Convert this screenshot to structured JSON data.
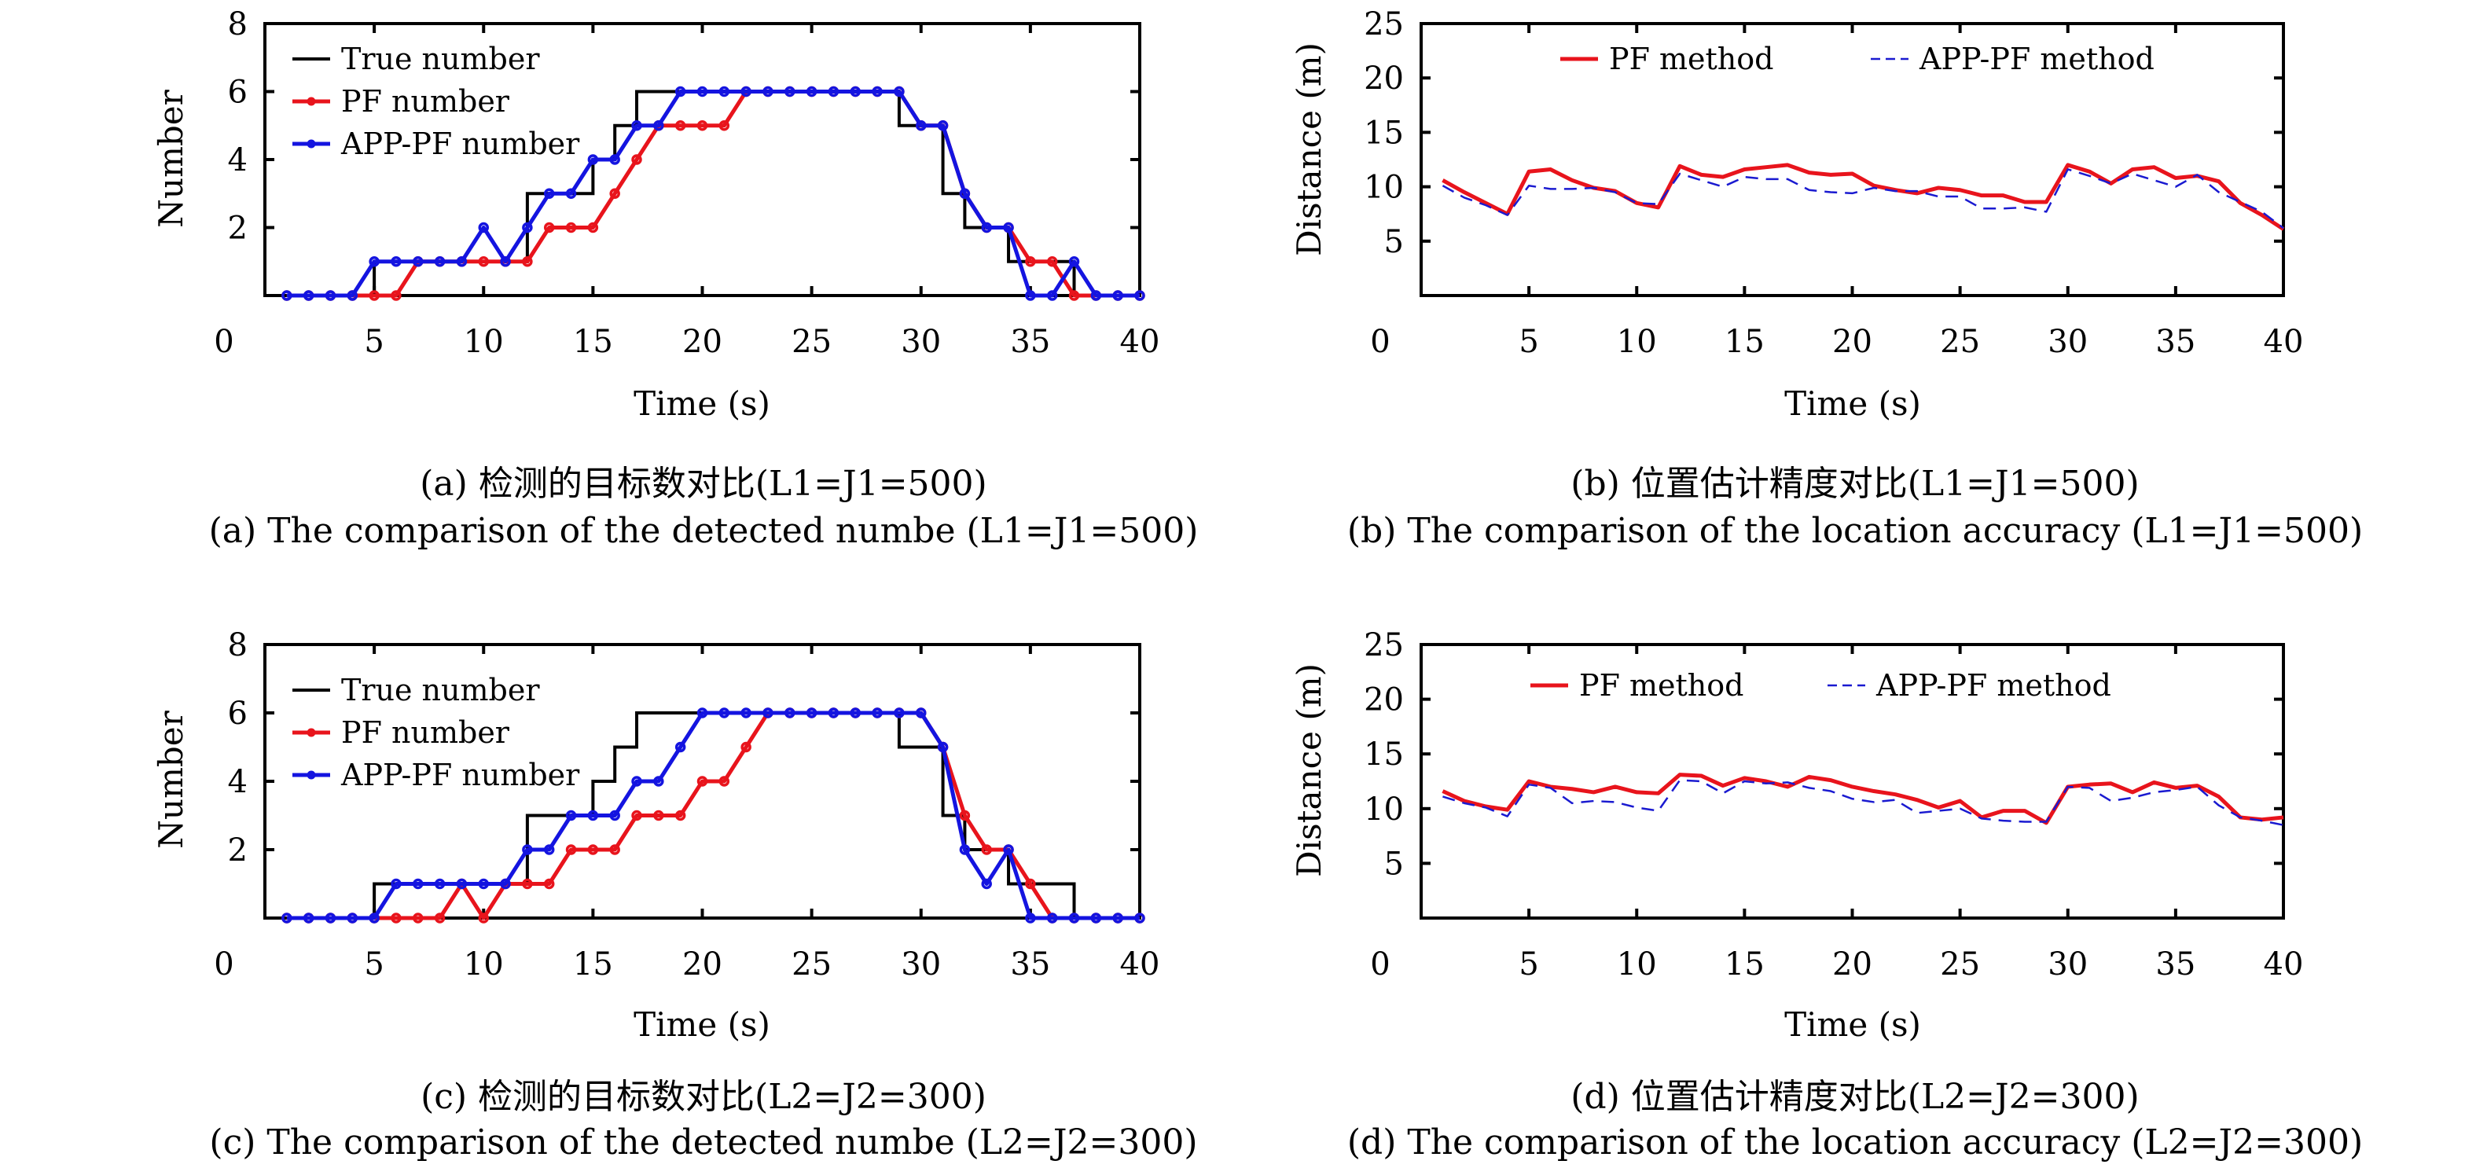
{
  "figure": {
    "panels": [
      "a",
      "b",
      "c",
      "d"
    ]
  },
  "chart_data": [
    {
      "id": "a",
      "type": "line",
      "xlabel": "Time (s)",
      "ylabel": "Number",
      "xlim": [
        0,
        40
      ],
      "ylim": [
        0,
        8
      ],
      "xticks": [
        0,
        5,
        10,
        15,
        20,
        25,
        30,
        35,
        40
      ],
      "yticks": [
        2,
        4,
        6,
        8
      ],
      "ytick_zero_label": "0",
      "legend_position": "top-left",
      "caption_cn": "(a) 检测的目标数对比(L1=J1=500)",
      "caption_en": "(a) The comparison of the detected numbe (L1=J1=500)",
      "x": [
        1,
        2,
        3,
        4,
        5,
        6,
        7,
        8,
        9,
        10,
        11,
        12,
        13,
        14,
        15,
        16,
        17,
        18,
        19,
        20,
        21,
        22,
        23,
        24,
        25,
        26,
        27,
        28,
        29,
        30,
        31,
        32,
        33,
        34,
        35,
        36,
        37,
        38,
        39,
        40
      ],
      "series": [
        {
          "name": "True number",
          "color": "#000000",
          "style": "step",
          "steps": [
            [
              1,
              0
            ],
            [
              5,
              1
            ],
            [
              12,
              3
            ],
            [
              15,
              4
            ],
            [
              16,
              5
            ],
            [
              17,
              6
            ],
            [
              29,
              5
            ],
            [
              31,
              3
            ],
            [
              32,
              2
            ],
            [
              34,
              1
            ],
            [
              37,
              0
            ],
            [
              40,
              0
            ]
          ]
        },
        {
          "name": "PF number",
          "color": "#e8141c",
          "style": "line-marker",
          "values": [
            0,
            0,
            0,
            0,
            0,
            0,
            1,
            1,
            1,
            1,
            1,
            1,
            2,
            2,
            2,
            3,
            4,
            5,
            5,
            5,
            5,
            6,
            6,
            6,
            6,
            6,
            6,
            6,
            6,
            5,
            5,
            3,
            2,
            2,
            1,
            1,
            0,
            0,
            0,
            0
          ]
        },
        {
          "name": "APP-PF number",
          "color": "#1414e0",
          "style": "line-marker",
          "values": [
            0,
            0,
            0,
            0,
            1,
            1,
            1,
            1,
            1,
            2,
            1,
            2,
            3,
            3,
            4,
            4,
            5,
            5,
            6,
            6,
            6,
            6,
            6,
            6,
            6,
            6,
            6,
            6,
            6,
            5,
            5,
            3,
            2,
            2,
            0,
            0,
            1,
            0,
            0,
            0
          ]
        }
      ]
    },
    {
      "id": "b",
      "type": "line",
      "xlabel": "Time (s)",
      "ylabel": "Distance (m)",
      "xlim": [
        0,
        40
      ],
      "ylim": [
        0,
        25
      ],
      "xticks": [
        0,
        5,
        10,
        15,
        20,
        25,
        30,
        35,
        40
      ],
      "yticks": [
        5,
        10,
        15,
        20,
        25
      ],
      "ytick_zero_label": "0",
      "legend_position": "top-center",
      "caption_cn": "(b) 位置估计精度对比(L1=J1=500)",
      "caption_en": "(b) The comparison of the location accuracy (L1=J1=500)",
      "x": [
        1,
        2,
        3,
        4,
        5,
        6,
        7,
        8,
        9,
        10,
        11,
        12,
        13,
        14,
        15,
        16,
        17,
        18,
        19,
        20,
        21,
        22,
        23,
        24,
        25,
        26,
        27,
        28,
        29,
        30,
        31,
        32,
        33,
        34,
        35,
        36,
        37,
        38,
        39,
        40
      ],
      "series": [
        {
          "name": "PF method",
          "color": "#e8141c",
          "style": "solid",
          "values": [
            10.6,
            9.5,
            8.5,
            7.5,
            11.4,
            11.6,
            10.6,
            9.9,
            9.6,
            8.5,
            8.1,
            11.9,
            11.1,
            10.9,
            11.6,
            11.8,
            12.0,
            11.3,
            11.1,
            11.2,
            10.1,
            9.7,
            9.4,
            9.9,
            9.7,
            9.2,
            9.2,
            8.6,
            8.6,
            12.0,
            11.4,
            10.3,
            11.6,
            11.8,
            10.8,
            11.0,
            10.5,
            8.5,
            7.4,
            6.1
          ]
        },
        {
          "name": "APP-PF method",
          "color": "#1a1ad0",
          "style": "dashed",
          "values": [
            10.1,
            9.0,
            8.3,
            7.4,
            10.1,
            9.8,
            9.8,
            9.9,
            9.5,
            8.5,
            8.4,
            11.2,
            10.6,
            10.0,
            10.9,
            10.7,
            10.7,
            9.7,
            9.5,
            9.4,
            9.9,
            9.6,
            9.6,
            9.1,
            9.1,
            8.0,
            8.0,
            8.1,
            7.7,
            11.6,
            11.0,
            10.3,
            11.2,
            10.6,
            10.0,
            11.1,
            9.5,
            8.6,
            7.7,
            6.2
          ]
        }
      ]
    },
    {
      "id": "c",
      "type": "line",
      "xlabel": "Time (s)",
      "ylabel": "Number",
      "xlim": [
        0,
        40
      ],
      "ylim": [
        0,
        8
      ],
      "xticks": [
        0,
        5,
        10,
        15,
        20,
        25,
        30,
        35,
        40
      ],
      "yticks": [
        2,
        4,
        6,
        8
      ],
      "ytick_zero_label": "0",
      "legend_position": "top-left",
      "caption_cn": "(c) 检测的目标数对比(L2=J2=300)",
      "caption_en": "(c) The comparison of the detected numbe (L2=J2=300)",
      "x": [
        1,
        2,
        3,
        4,
        5,
        6,
        7,
        8,
        9,
        10,
        11,
        12,
        13,
        14,
        15,
        16,
        17,
        18,
        19,
        20,
        21,
        22,
        23,
        24,
        25,
        26,
        27,
        28,
        29,
        30,
        31,
        32,
        33,
        34,
        35,
        36,
        37,
        38,
        39,
        40
      ],
      "series": [
        {
          "name": "True number",
          "color": "#000000",
          "style": "step",
          "steps": [
            [
              1,
              0
            ],
            [
              5,
              1
            ],
            [
              12,
              3
            ],
            [
              15,
              4
            ],
            [
              16,
              5
            ],
            [
              17,
              6
            ],
            [
              29,
              5
            ],
            [
              31,
              3
            ],
            [
              32,
              2
            ],
            [
              34,
              1
            ],
            [
              37,
              0
            ],
            [
              40,
              0
            ]
          ]
        },
        {
          "name": "PF number",
          "color": "#e8141c",
          "style": "line-marker",
          "values": [
            0,
            0,
            0,
            0,
            0,
            0,
            0,
            0,
            1,
            0,
            1,
            1,
            1,
            2,
            2,
            2,
            3,
            3,
            3,
            4,
            4,
            5,
            6,
            6,
            6,
            6,
            6,
            6,
            6,
            6,
            5,
            3,
            2,
            2,
            1,
            0,
            0,
            0,
            0,
            0
          ]
        },
        {
          "name": "APP-PF number",
          "color": "#1414e0",
          "style": "line-marker",
          "values": [
            0,
            0,
            0,
            0,
            0,
            1,
            1,
            1,
            1,
            1,
            1,
            2,
            2,
            3,
            3,
            3,
            4,
            4,
            5,
            6,
            6,
            6,
            6,
            6,
            6,
            6,
            6,
            6,
            6,
            6,
            5,
            2,
            1,
            2,
            0,
            0,
            0,
            0,
            0,
            0
          ]
        }
      ]
    },
    {
      "id": "d",
      "type": "line",
      "xlabel": "Time (s)",
      "ylabel": "Distance (m)",
      "xlim": [
        0,
        40
      ],
      "ylim": [
        0,
        25
      ],
      "xticks": [
        0,
        5,
        10,
        15,
        20,
        25,
        30,
        35,
        40
      ],
      "yticks": [
        5,
        10,
        15,
        20,
        25
      ],
      "ytick_zero_label": "0",
      "legend_position": "top-center",
      "caption_cn": "(d) 位置估计精度对比(L2=J2=300)",
      "caption_en": "(d) The comparison of the location accuracy (L2=J2=300)",
      "x": [
        1,
        2,
        3,
        4,
        5,
        6,
        7,
        8,
        9,
        10,
        11,
        12,
        13,
        14,
        15,
        16,
        17,
        18,
        19,
        20,
        21,
        22,
        23,
        24,
        25,
        26,
        27,
        28,
        29,
        30,
        31,
        32,
        33,
        34,
        35,
        36,
        37,
        38,
        39,
        40
      ],
      "series": [
        {
          "name": "PF method",
          "color": "#e8141c",
          "style": "solid",
          "values": [
            11.6,
            10.7,
            10.2,
            9.9,
            12.5,
            12.0,
            11.8,
            11.5,
            12.0,
            11.5,
            11.4,
            13.1,
            13.0,
            12.1,
            12.8,
            12.5,
            12.0,
            12.9,
            12.6,
            12.0,
            11.6,
            11.3,
            10.8,
            10.1,
            10.7,
            9.2,
            9.8,
            9.8,
            8.7,
            12.0,
            12.2,
            12.3,
            11.5,
            12.4,
            11.9,
            12.1,
            11.1,
            9.2,
            9.0,
            9.2
          ]
        },
        {
          "name": "APP-PF method",
          "color": "#1a1ad0",
          "style": "dashed",
          "values": [
            11.1,
            10.5,
            10.1,
            9.3,
            12.2,
            11.9,
            10.5,
            10.7,
            10.6,
            10.1,
            9.8,
            12.6,
            12.5,
            11.4,
            12.5,
            12.3,
            12.4,
            11.9,
            11.6,
            10.9,
            10.6,
            10.8,
            9.6,
            9.8,
            10.0,
            9.1,
            8.9,
            8.8,
            8.8,
            12.0,
            11.9,
            10.7,
            11.0,
            11.5,
            11.7,
            12.0,
            10.3,
            9.2,
            8.9,
            8.5
          ]
        }
      ]
    }
  ]
}
